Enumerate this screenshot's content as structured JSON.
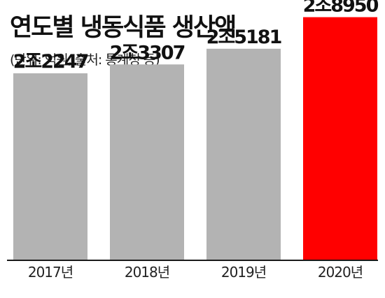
{
  "chart_data": {
    "type": "bar",
    "title": "연도별 냉동식품 생산액",
    "subtitle": "(단위: 억원, 출처: 통계청 등)",
    "categories": [
      "2017년",
      "2018년",
      "2019년",
      "2020년"
    ],
    "values": [
      22247,
      23307,
      25181,
      28950
    ],
    "value_labels": [
      "2조2247",
      "2조3307",
      "2조5181",
      "2조8950"
    ],
    "ylim": [
      0,
      31000
    ],
    "grid": false,
    "legend": "none",
    "colors": {
      "bar": "#b3b3b3",
      "highlight": "#ff0000",
      "baseline": "#1a1a1a"
    },
    "highlight_index": 3
  }
}
